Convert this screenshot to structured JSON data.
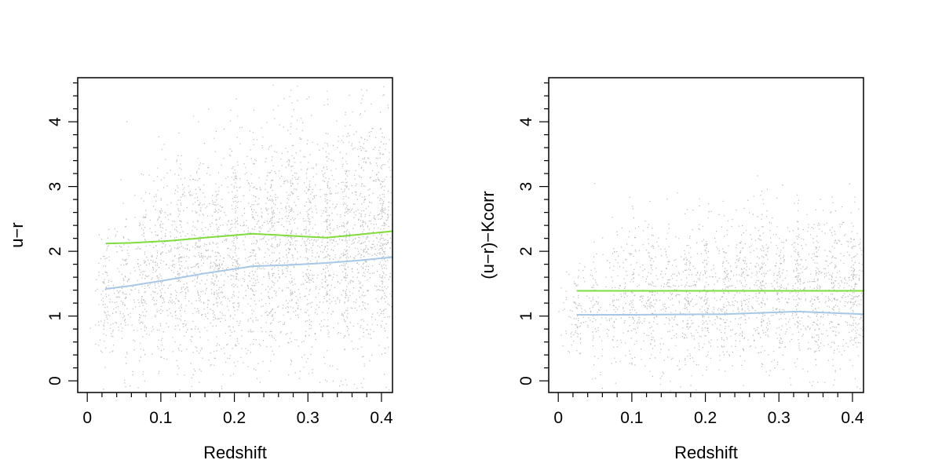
{
  "colors": {
    "upper_line": "#7fdc3a",
    "lower_line": "#a6c8e6",
    "points": "#000000"
  },
  "chart_data": [
    {
      "type": "scatter",
      "title": "",
      "xlabel": "Redshift",
      "ylabel": "u−r",
      "xlim": [
        -0.013,
        0.415
      ],
      "ylim": [
        -0.18,
        4.68
      ],
      "x_ticks": [
        0,
        0.1,
        0.2,
        0.3,
        0.4
      ],
      "x_tick_labels": [
        "0",
        "0.1",
        "0.2",
        "0.3",
        "0.4"
      ],
      "y_ticks": [
        0,
        1,
        2,
        3,
        4
      ],
      "y_tick_labels": [
        "0",
        "1",
        "2",
        "3",
        "4"
      ],
      "grid": false,
      "scatter_cloud": {
        "x_range": [
          0.01,
          0.415
        ],
        "mean_y": [
          [
            0.01,
            1.25
          ],
          [
            0.1,
            1.7
          ],
          [
            0.2,
            2.0
          ],
          [
            0.3,
            2.1
          ],
          [
            0.415,
            2.2
          ]
        ],
        "spread_y": [
          [
            0.01,
            0.45
          ],
          [
            0.1,
            0.75
          ],
          [
            0.2,
            0.9
          ],
          [
            0.3,
            0.95
          ],
          [
            0.415,
            0.95
          ]
        ]
      },
      "series": [
        {
          "type": "line",
          "color_key": "upper_line",
          "x": [
            0.025,
            0.06,
            0.11,
            0.16,
            0.225,
            0.275,
            0.325,
            0.37,
            0.415
          ],
          "y": [
            2.12,
            2.13,
            2.16,
            2.21,
            2.27,
            2.24,
            2.21,
            2.26,
            2.31
          ]
        },
        {
          "type": "line",
          "color_key": "lower_line",
          "x": [
            0.025,
            0.06,
            0.11,
            0.16,
            0.225,
            0.275,
            0.325,
            0.37,
            0.415
          ],
          "y": [
            1.42,
            1.47,
            1.56,
            1.66,
            1.77,
            1.79,
            1.82,
            1.86,
            1.91
          ]
        }
      ]
    },
    {
      "type": "scatter",
      "title": "",
      "xlabel": "Redshift",
      "ylabel": "(u−r)−Kcorr",
      "xlim": [
        -0.013,
        0.415
      ],
      "ylim": [
        -0.18,
        4.68
      ],
      "x_ticks": [
        0,
        0.1,
        0.2,
        0.3,
        0.4
      ],
      "x_tick_labels": [
        "0",
        "0.1",
        "0.2",
        "0.3",
        "0.4"
      ],
      "y_ticks": [
        0,
        1,
        2,
        3,
        4
      ],
      "y_tick_labels": [
        "0",
        "1",
        "2",
        "3",
        "4"
      ],
      "grid": false,
      "scatter_cloud": {
        "x_range": [
          0.005,
          0.415
        ],
        "mean_y": [
          [
            0.005,
            1.0
          ],
          [
            0.08,
            1.25
          ],
          [
            0.2,
            1.35
          ],
          [
            0.3,
            1.4
          ],
          [
            0.415,
            1.35
          ]
        ],
        "spread_y": [
          [
            0.005,
            0.3
          ],
          [
            0.08,
            0.55
          ],
          [
            0.2,
            0.6
          ],
          [
            0.3,
            0.6
          ],
          [
            0.415,
            0.6
          ]
        ]
      },
      "series": [
        {
          "type": "line",
          "color_key": "upper_line",
          "x": [
            0.025,
            0.415
          ],
          "y": [
            1.39,
            1.39
          ]
        },
        {
          "type": "line",
          "color_key": "lower_line",
          "x": [
            0.025,
            0.1,
            0.225,
            0.325,
            0.415
          ],
          "y": [
            1.02,
            1.02,
            1.03,
            1.07,
            1.03
          ]
        }
      ]
    }
  ]
}
